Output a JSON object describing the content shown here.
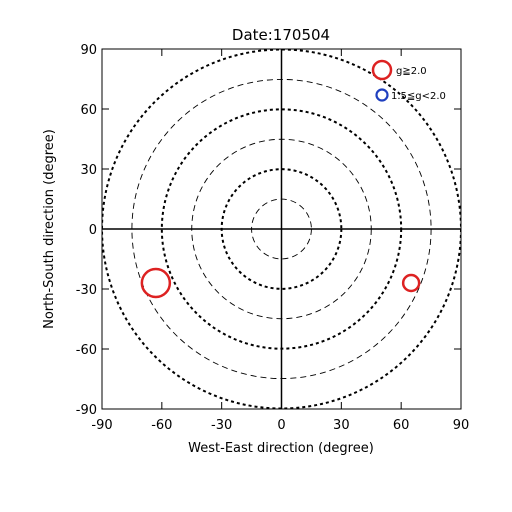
{
  "chart_data": {
    "type": "scatter",
    "title": "Date:170504",
    "xlabel": "West-East direction (degree)",
    "ylabel": "North-South direction (degree)",
    "xlim": [
      -90,
      90
    ],
    "ylim": [
      -90,
      90
    ],
    "xticks": [
      -90,
      -60,
      -30,
      0,
      30,
      60,
      90
    ],
    "yticks": [
      -90,
      -60,
      -30,
      0,
      30,
      60,
      90
    ],
    "grid": "concentric dashed circles every 15 degrees with zero cross-hair",
    "grid_radii": [
      15,
      30,
      45,
      60,
      75,
      90
    ],
    "legend": {
      "placement": "top-right",
      "entries": [
        {
          "label": "g≧2.0",
          "color": "#dd2222",
          "marker": "large-open-circle"
        },
        {
          "label": "1.5≦g<2.0",
          "color": "#1f3fbf",
          "marker": "small-open-circle"
        }
      ]
    },
    "series": [
      {
        "name": "g≧2.0",
        "color": "#dd2222",
        "points": [
          {
            "x": -63,
            "y": -27,
            "g": 2.6
          },
          {
            "x": 65,
            "y": -27,
            "g": 2.0
          }
        ]
      },
      {
        "name": "1.5≦g<2.0",
        "color": "#1f3fbf",
        "points": []
      }
    ]
  }
}
